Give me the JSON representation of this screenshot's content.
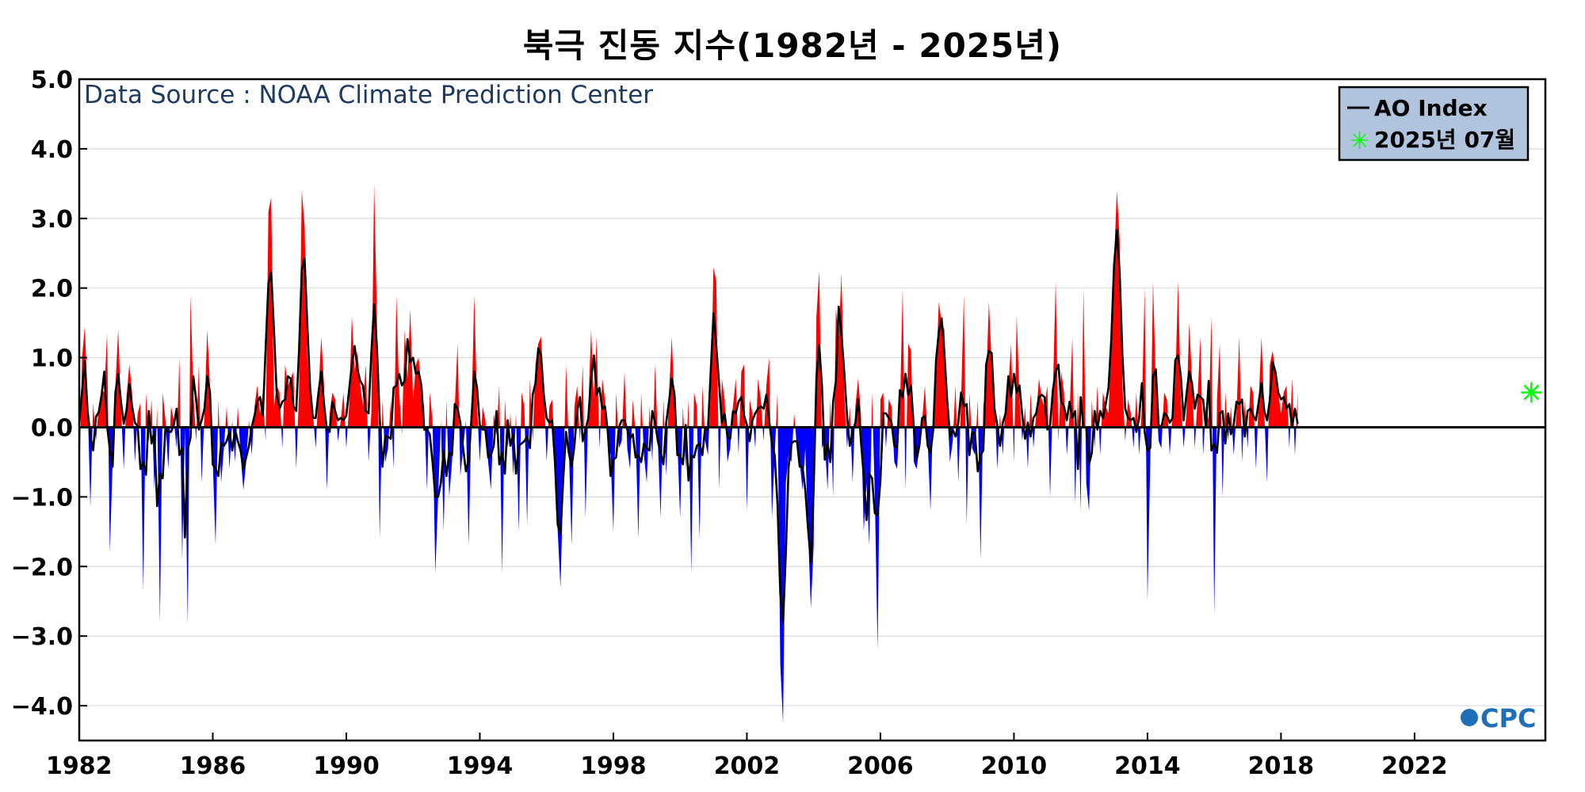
{
  "chart_data": {
    "type": "area",
    "title": "북극 진동 지수(1982년 - 2025년)",
    "xlabel": "",
    "ylabel": "",
    "xlim": [
      1982.0,
      2025.92
    ],
    "ylim": [
      -4.5,
      5.0
    ],
    "x_ticks": [
      1982,
      1986,
      1990,
      1994,
      1998,
      2002,
      2006,
      2010,
      2014,
      2018,
      2022
    ],
    "x_tick_labels": [
      "1982",
      "1986",
      "1990",
      "1994",
      "1998",
      "2002",
      "2006",
      "2010",
      "2014",
      "2018",
      "2022"
    ],
    "y_ticks": [
      5.0,
      4.0,
      3.0,
      2.0,
      1.0,
      0.0,
      -1.0,
      -2.0,
      -3.0,
      -4.0
    ],
    "y_tick_labels": [
      "5.0",
      "4.0",
      "3.0",
      "2.0",
      "1.0",
      "0.0",
      "−1.0",
      "−2.0",
      "−3.0",
      "−4.0"
    ],
    "grid": "horizontal",
    "legend_position": "top-right",
    "annotation": "Data Source : NOAA Climate Prediction Center",
    "positive_color": "#ff0000",
    "negative_color": "#0000ff",
    "line_color": "#000000",
    "marker_color": "#00ff00",
    "legend": {
      "line_label": "AO Index",
      "marker_label": "2025년 07월",
      "background": "#b0c4de"
    },
    "latest": {
      "year": 2025,
      "month": 7,
      "value": 0.5
    },
    "monthly_series": {
      "name": "AO Index (monthly, approximate)",
      "start": "1982-01",
      "values": [
        -0.9,
        1.0,
        1.45,
        0.4,
        -1.15,
        0.35,
        -0.2,
        0.3,
        0.55,
        0.5,
        1.35,
        -1.8,
        -0.5,
        0.6,
        1.4,
        0.3,
        -0.6,
        0.45,
        0.9,
        0.5,
        -0.5,
        0.2,
        0.35,
        -2.35,
        0.5,
        -0.2,
        0.4,
        -0.9,
        0.3,
        -2.8,
        0.5,
        0.1,
        -0.6,
        0.3,
        0.1,
        -0.3,
        1.0,
        -1.9,
        0.0,
        -2.85,
        1.9,
        0.5,
        -0.2,
        0.9,
        -0.8,
        0.2,
        1.4,
        0.6,
        -0.5,
        -1.7,
        0.4,
        -0.8,
        -0.3,
        0.3,
        -0.6,
        0.1,
        -0.5,
        0.3,
        -0.4,
        -0.9,
        -0.5,
        0.1,
        -0.4,
        0.3,
        0.6,
        0.2,
        0.5,
        -0.2,
        3.1,
        3.3,
        0.3,
        0.6,
        0.5,
        -0.3,
        0.9,
        0.6,
        0.7,
        0.8,
        -0.6,
        0.5,
        3.4,
        2.9,
        1.0,
        0.5,
        0.2,
        -0.3,
        0.5,
        1.3,
        0.6,
        -0.9,
        0.2,
        0.5,
        0.4,
        -0.2,
        0.1,
        0.5,
        -0.3,
        0.3,
        1.6,
        0.8,
        1.1,
        0.6,
        0.3,
        0.9,
        -0.5,
        0.2,
        3.5,
        1.6,
        -1.6,
        0.4,
        -0.5,
        -0.3,
        0.4,
        -0.6,
        1.9,
        0.5,
        -0.1,
        1.4,
        0.7,
        1.7,
        0.4,
        0.9,
        1.0,
        0.5,
        0.3,
        -0.9,
        0.5,
        0.1,
        -2.1,
        -1.0,
        0.1,
        -1.5,
        0.4,
        -1.0,
        -0.5,
        0.3,
        1.2,
        -0.7,
        -0.3,
        0.1,
        -1.7,
        0.2,
        1.9,
        0.3,
        -0.5,
        0.3,
        0.1,
        -0.5,
        -0.9,
        0.2,
        -0.1,
        0.6,
        -2.1,
        0.4,
        -0.3,
        0.2,
        -0.7,
        0.2,
        -1.5,
        0.5,
        0.3,
        -1.4,
        0.7,
        -0.2,
        0.9,
        1.2,
        1.3,
        0.6,
        -0.5,
        0.3,
        0.4,
        -0.4,
        -1.5,
        -2.3,
        -0.8,
        0.9,
        -0.3,
        -1.7,
        0.3,
        0.6,
        -0.2,
        0.9,
        -1.3,
        0.3,
        1.4,
        0.4,
        1.3,
        -0.3,
        0.7,
        0.4,
        -0.2,
        -0.4,
        -1.5,
        0.5,
        -0.3,
        -0.2,
        0.8,
        -0.3,
        -0.6,
        0.4,
        -0.1,
        -1.6,
        0.5,
        -0.4,
        -0.8,
        0.3,
        -0.5,
        0.9,
        -0.2,
        -1.3,
        0.4,
        -0.7,
        0.5,
        1.3,
        0.3,
        -0.2,
        -1.3,
        0.3,
        -0.6,
        0.4,
        -2.1,
        0.5,
        0.3,
        -1.6,
        0.6,
        -0.2,
        -0.4,
        0.5,
        2.3,
        2.1,
        -0.9,
        0.7,
        0.4,
        -0.5,
        -0.3,
        0.3,
        0.7,
        -0.4,
        0.8,
        0.9,
        -1.2,
        0.4,
        0.2,
        -0.3,
        0.7,
        0.4,
        -0.2,
        0.6,
        1.0,
        -1.3,
        -0.4,
        0.5,
        -3.4,
        -4.25,
        -0.8,
        -0.4,
        -0.5,
        0.2,
        -0.3,
        -0.5,
        -0.9,
        -0.3,
        -1.5,
        -2.6,
        -1.7,
        1.6,
        2.25,
        -0.3,
        -0.2,
        -0.9,
        0.4,
        -1.0,
        1.7,
        1.3,
        2.2,
        0.5,
        -0.3,
        0.3,
        -0.8,
        0.3,
        0.7,
        0.2,
        -1.5,
        -0.8,
        -1.7,
        0.5,
        -1.0,
        -3.2,
        0.4,
        0.5,
        -0.3,
        0.4,
        0.3,
        -0.5,
        -0.6,
        0.2,
        2.0,
        -0.9,
        1.2,
        1.1,
        -0.5,
        -0.6,
        -0.3,
        0.1,
        0.6,
        -0.2,
        -1.2,
        0.3,
        0.8,
        1.8,
        1.5,
        1.4,
        0.3,
        -0.5,
        -0.2,
        0.6,
        -0.8,
        0.4,
        1.9,
        -1.4,
        0.5,
        -0.3,
        -0.4,
        0.4,
        -1.9,
        0.3,
        0.6,
        1.8,
        0.9,
        0.5,
        -0.6,
        0.2,
        -0.4,
        0.4,
        0.6,
        1.2,
        -0.5,
        1.6,
        0.4,
        -0.2,
        0.3,
        -0.6,
        0.5,
        -0.3,
        0.2,
        0.7,
        0.4,
        0.3,
        0.6,
        -1.0,
        0.5,
        2.1,
        -0.2,
        0.8,
        0.5,
        -0.4,
        0.2,
        1.3,
        -1.1,
        0.5,
        -1.2,
        2.0,
        -0.8,
        -1.2,
        0.4,
        -0.3,
        0.6,
        -0.4,
        0.5,
        0.3,
        0.2,
        1.2,
        2.4,
        3.4,
        2.7,
        0.6,
        -0.2,
        0.4,
        0.2,
        -0.3,
        0.5,
        -0.4,
        0.3,
        2.0,
        -2.5,
        -0.5,
        2.1,
        0.6,
        -0.2,
        -0.3,
        0.5,
        0.4,
        -0.4,
        0.2,
        0.6,
        2.1,
        0.4,
        -0.3,
        0.2,
        1.5,
        0.7,
        -0.3,
        0.4,
        1.3,
        -0.4,
        0.3,
        0.1,
        1.6,
        -2.7,
        0.4,
        1.2,
        -1.0,
        0.5,
        -0.2,
        0.3,
        -0.4,
        0.2,
        1.3,
        -0.5,
        0.4,
        -0.3,
        0.6,
        0.5,
        -0.6,
        0.4,
        1.3,
        0.2,
        -0.8,
        0.9,
        1.1,
        0.8,
        0.5,
        0.2,
        0.5,
        0.6,
        -0.3,
        0.7,
        -0.4,
        0.5
      ]
    }
  }
}
